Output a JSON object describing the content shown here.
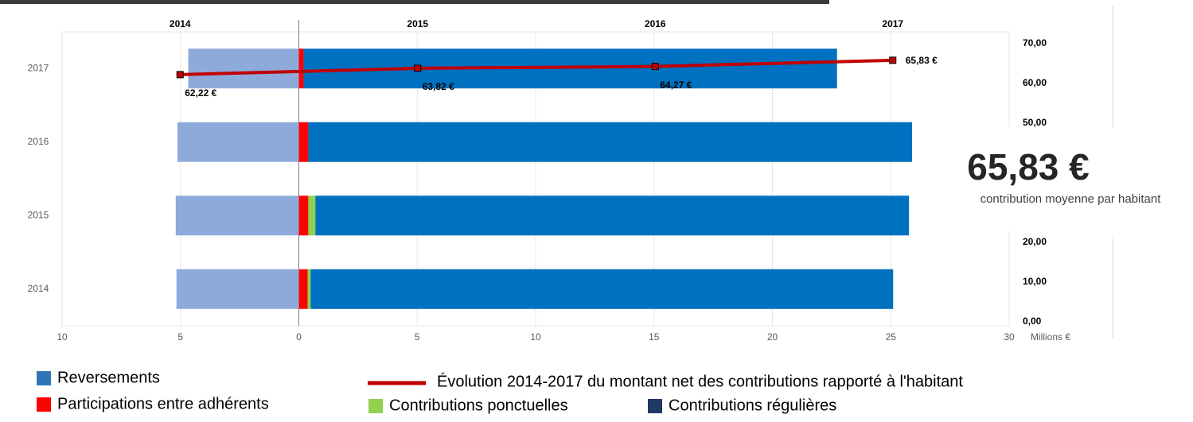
{
  "chart_data": [
    {
      "type": "bar",
      "orientation": "horizontal",
      "stacked": true,
      "categories": [
        "2014",
        "2015",
        "2016",
        "2017"
      ],
      "series": [
        {
          "name": "Participations entre adhérents",
          "color": "#ff0000",
          "values": [
            0.37,
            0.4,
            0.4,
            0.2
          ]
        },
        {
          "name": "Contributions ponctuelles",
          "color": "#92d050",
          "values": [
            0.13,
            0.3,
            0,
            0
          ]
        },
        {
          "name": "Reversements",
          "color": "#0070c0",
          "legend_color": "#2e75b6",
          "values": [
            24.6,
            25.07,
            25.5,
            22.53
          ]
        },
        {
          "name": "Contributions régulières",
          "color": "#8eaadb",
          "legend_color": "#203864",
          "values": [
            -5.17,
            -5.2,
            -5.13,
            -4.67
          ]
        }
      ],
      "xlim": [
        -10,
        30
      ],
      "xticks": [
        {
          "value": -10,
          "label": "10"
        },
        {
          "value": -5,
          "label": "5"
        },
        0,
        5,
        10,
        15,
        20,
        25,
        30
      ],
      "xlabel": "Millions €",
      "grid": true
    },
    {
      "type": "line",
      "categories": [
        "2014",
        "2015",
        "2016",
        "2017"
      ],
      "series": [
        {
          "name": "Évolution 2014-2017 du montant net des contributions rapporté à l'habitant",
          "color": "#c00000",
          "values": [
            62.22,
            63.82,
            64.27,
            65.83
          ],
          "value_labels": [
            "62,22 €",
            "63,82 €",
            "64,27 €",
            "65,83 €"
          ]
        }
      ],
      "ylim": [
        0,
        70
      ],
      "yticks": [
        {
          "value": 0,
          "label": "0,00"
        },
        {
          "value": 10,
          "label": "10,00"
        },
        {
          "value": 20,
          "label": "20,00"
        },
        {
          "value": 50,
          "label": "50,00"
        },
        {
          "value": 60,
          "label": "60,00"
        },
        {
          "value": 70,
          "label": "70,00"
        }
      ],
      "annotation": {
        "value": "65,83 €",
        "text": "contribution moyenne par habitant"
      }
    }
  ]
}
